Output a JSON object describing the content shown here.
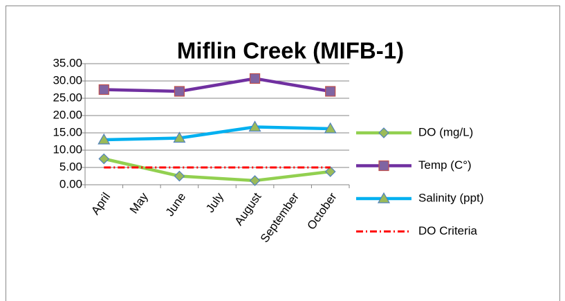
{
  "chart_data": {
    "type": "line",
    "title": "Miflin Creek (MIFB-1)",
    "categories": [
      "April",
      "May",
      "June",
      "July",
      "August",
      "September",
      "October"
    ],
    "span_gaps": true,
    "grid": true,
    "ylim": [
      0,
      35
    ],
    "yticks": [
      {
        "value": 0,
        "label": "0.00"
      },
      {
        "value": 5,
        "label": "5.00"
      },
      {
        "value": 10,
        "label": "10.00"
      },
      {
        "value": 15,
        "label": "15.00"
      },
      {
        "value": 20,
        "label": "20.00"
      },
      {
        "value": 25,
        "label": "25.00"
      },
      {
        "value": 30,
        "label": "30.00"
      },
      {
        "value": 35,
        "label": "35.00"
      }
    ],
    "series": [
      {
        "name": "DO (mg/L)",
        "color": "#92d050",
        "marker": "diamond",
        "values": [
          7.5,
          null,
          2.5,
          null,
          1.2,
          null,
          3.8
        ]
      },
      {
        "name": "Temp (C°)",
        "color": "#7030a0",
        "marker": "square",
        "values": [
          27.5,
          null,
          27,
          null,
          30.7,
          null,
          27
        ]
      },
      {
        "name": "Salinity (ppt)",
        "color": "#00b0f0",
        "marker": "triangle",
        "values": [
          13,
          null,
          13.5,
          null,
          16.7,
          null,
          16.2
        ]
      },
      {
        "name": "DO Criteria",
        "color": "#ff0000",
        "dash": "dashdot",
        "values": [
          5,
          5,
          5,
          5,
          5,
          5,
          5
        ]
      }
    ]
  }
}
